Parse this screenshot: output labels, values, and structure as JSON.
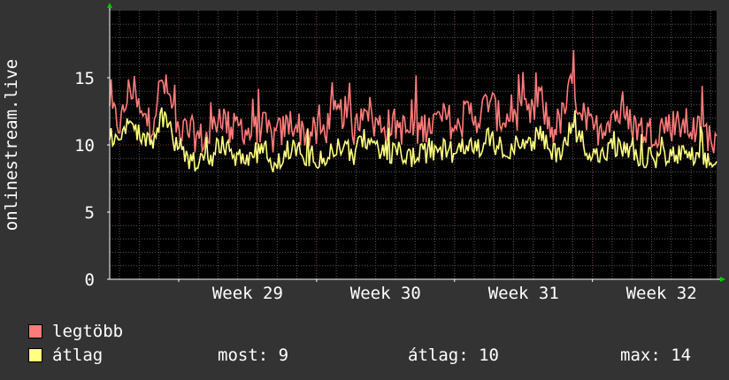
{
  "colors": {
    "background": "#333333",
    "plot_background": "#000000",
    "axis": "#ffffff",
    "text": "#ffffff",
    "grid_minor": "#5a5a5a",
    "grid_major": "#7a3838",
    "arrow": "#00cc00",
    "legtobb": "#ff7b7b",
    "atlag": "#ffff80"
  },
  "legend": {
    "items": [
      {
        "label": "legtöbb",
        "color": "#ff7b7b"
      },
      {
        "label": "átlag",
        "color": "#ffff80"
      }
    ],
    "stats": {
      "most": "most: 9",
      "atlag": "átlag: 10",
      "max": "max: 14"
    }
  },
  "chart_data": {
    "type": "line",
    "ylabel": "onlinestream.live",
    "ylim": [
      0,
      20
    ],
    "yticks": [
      0,
      5,
      10,
      15
    ],
    "xtick_labels": [
      "Week 29",
      "Week 30",
      "Week 31",
      "Week 32"
    ],
    "grid": true,
    "x_range_weeks": [
      28.5,
      32.9
    ],
    "x_major_weeks": [
      29,
      30,
      31,
      32
    ],
    "anchors": {
      "legtobb": [
        [
          28.5,
          12.5
        ],
        [
          28.58,
          11.5
        ],
        [
          28.65,
          14.5
        ],
        [
          28.73,
          12.0
        ],
        [
          28.8,
          11.5
        ],
        [
          28.88,
          14.8
        ],
        [
          28.95,
          13.0
        ],
        [
          29.0,
          11.0
        ],
        [
          29.08,
          11.0
        ],
        [
          29.15,
          10.5
        ],
        [
          29.22,
          10.5
        ],
        [
          29.3,
          12.5
        ],
        [
          29.38,
          11.0
        ],
        [
          29.45,
          11.5
        ],
        [
          29.52,
          10.8
        ],
        [
          29.6,
          11.5
        ],
        [
          29.68,
          10.5
        ],
        [
          29.75,
          11.0
        ],
        [
          29.82,
          11.8
        ],
        [
          29.9,
          11.0
        ],
        [
          29.98,
          10.8
        ],
        [
          30.05,
          11.0
        ],
        [
          30.12,
          12.0
        ],
        [
          30.2,
          12.5
        ],
        [
          30.28,
          11.0
        ],
        [
          30.35,
          13.5
        ],
        [
          30.42,
          11.5
        ],
        [
          30.5,
          11.5
        ],
        [
          30.58,
          11.5
        ],
        [
          30.65,
          11.0
        ],
        [
          30.72,
          11.0
        ],
        [
          30.8,
          11.5
        ],
        [
          30.88,
          11.8
        ],
        [
          30.95,
          12.0
        ],
        [
          31.02,
          11.0
        ],
        [
          31.1,
          12.5
        ],
        [
          31.18,
          12.0
        ],
        [
          31.25,
          13.5
        ],
        [
          31.32,
          12.0
        ],
        [
          31.4,
          12.0
        ],
        [
          31.48,
          12.5
        ],
        [
          31.55,
          12.0
        ],
        [
          31.62,
          13.5
        ],
        [
          31.7,
          11.0
        ],
        [
          31.78,
          12.0
        ],
        [
          31.85,
          14.5
        ],
        [
          31.92,
          12.5
        ],
        [
          32.0,
          11.0
        ],
        [
          32.08,
          11.5
        ],
        [
          32.15,
          12.5
        ],
        [
          32.22,
          12.0
        ],
        [
          32.3,
          11.5
        ],
        [
          32.38,
          11.0
        ],
        [
          32.45,
          11.0
        ],
        [
          32.52,
          11.5
        ],
        [
          32.6,
          11.5
        ],
        [
          32.68,
          11.5
        ],
        [
          32.75,
          11.0
        ],
        [
          32.82,
          11.0
        ],
        [
          32.9,
          10.0
        ]
      ],
      "atlag": [
        [
          28.5,
          10.8
        ],
        [
          28.58,
          10.2
        ],
        [
          28.65,
          12.0
        ],
        [
          28.73,
          10.5
        ],
        [
          28.8,
          10.2
        ],
        [
          28.88,
          12.2
        ],
        [
          28.95,
          11.0
        ],
        [
          29.0,
          9.2
        ],
        [
          29.08,
          9.0
        ],
        [
          29.15,
          8.8
        ],
        [
          29.22,
          8.8
        ],
        [
          29.3,
          10.0
        ],
        [
          29.38,
          9.3
        ],
        [
          29.45,
          9.2
        ],
        [
          29.52,
          9.2
        ],
        [
          29.6,
          9.5
        ],
        [
          29.68,
          8.8
        ],
        [
          29.75,
          9.2
        ],
        [
          29.82,
          9.8
        ],
        [
          29.9,
          9.2
        ],
        [
          29.98,
          9.2
        ],
        [
          30.05,
          9.0
        ],
        [
          30.12,
          9.5
        ],
        [
          30.2,
          10.0
        ],
        [
          30.28,
          9.2
        ],
        [
          30.35,
          10.5
        ],
        [
          30.42,
          9.5
        ],
        [
          30.5,
          9.2
        ],
        [
          30.58,
          9.5
        ],
        [
          30.65,
          9.2
        ],
        [
          30.72,
          9.0
        ],
        [
          30.8,
          9.5
        ],
        [
          30.88,
          9.5
        ],
        [
          30.95,
          9.8
        ],
        [
          31.02,
          9.2
        ],
        [
          31.1,
          10.0
        ],
        [
          31.18,
          9.8
        ],
        [
          31.25,
          10.5
        ],
        [
          31.32,
          9.8
        ],
        [
          31.4,
          9.8
        ],
        [
          31.48,
          10.0
        ],
        [
          31.55,
          9.8
        ],
        [
          31.62,
          11.0
        ],
        [
          31.7,
          9.2
        ],
        [
          31.78,
          9.8
        ],
        [
          31.85,
          11.5
        ],
        [
          31.92,
          10.5
        ],
        [
          32.0,
          9.2
        ],
        [
          32.08,
          9.2
        ],
        [
          32.15,
          10.0
        ],
        [
          32.22,
          9.5
        ],
        [
          32.3,
          9.2
        ],
        [
          32.38,
          9.0
        ],
        [
          32.45,
          9.0
        ],
        [
          32.52,
          9.2
        ],
        [
          32.6,
          9.2
        ],
        [
          32.68,
          9.2
        ],
        [
          32.75,
          9.0
        ],
        [
          32.82,
          8.8
        ],
        [
          32.9,
          8.5
        ]
      ]
    },
    "series": [
      {
        "name": "legtöbb",
        "color": "#ff7b7b",
        "min": 8.5,
        "max": 18.0
      },
      {
        "name": "átlag",
        "color": "#ffff80",
        "min": 7.3,
        "max": 13.5
      }
    ]
  }
}
